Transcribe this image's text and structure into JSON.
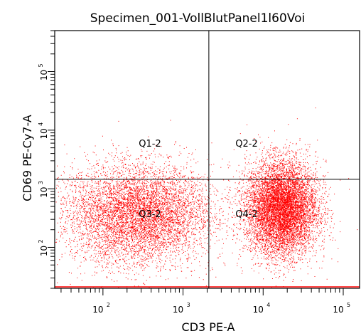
{
  "chart_data": {
    "type": "scatter",
    "title": "Specimen_001-VollBlutPanel1l60Voi",
    "xlabel": "CD3 PE-A",
    "ylabel": "CD69 PE-Cy7-A",
    "x_scale": "log",
    "y_scale": "log",
    "xlim": [
      25,
      160000
    ],
    "ylim": [
      20,
      500000
    ],
    "x_ticks": [
      {
        "base": "10",
        "exp": "2",
        "value": 100
      },
      {
        "base": "10",
        "exp": "3",
        "value": 1000
      },
      {
        "base": "10",
        "exp": "4",
        "value": 10000
      },
      {
        "base": "10",
        "exp": "5",
        "value": 100000
      }
    ],
    "y_ticks": [
      {
        "base": "10",
        "exp": "2",
        "value": 100
      },
      {
        "base": "10",
        "exp": "3",
        "value": 1000
      },
      {
        "base": "10",
        "exp": "4",
        "value": 10000
      },
      {
        "base": "10",
        "exp": "5",
        "value": 100000
      }
    ],
    "gates": {
      "x": 2100,
      "y": 1450
    },
    "quadrants": [
      {
        "label": "Q1-2"
      },
      {
        "label": "Q2-2"
      },
      {
        "label": "Q3-2"
      },
      {
        "label": "Q4-2"
      }
    ],
    "populations": [
      {
        "x_center": 280,
        "y_center": 370,
        "count": 14000
      },
      {
        "x_center": 17000,
        "y_center": 470,
        "count": 17000
      }
    ],
    "point_color": "#ff0000",
    "line_color": "#000000",
    "grid": false,
    "legend": "none"
  }
}
